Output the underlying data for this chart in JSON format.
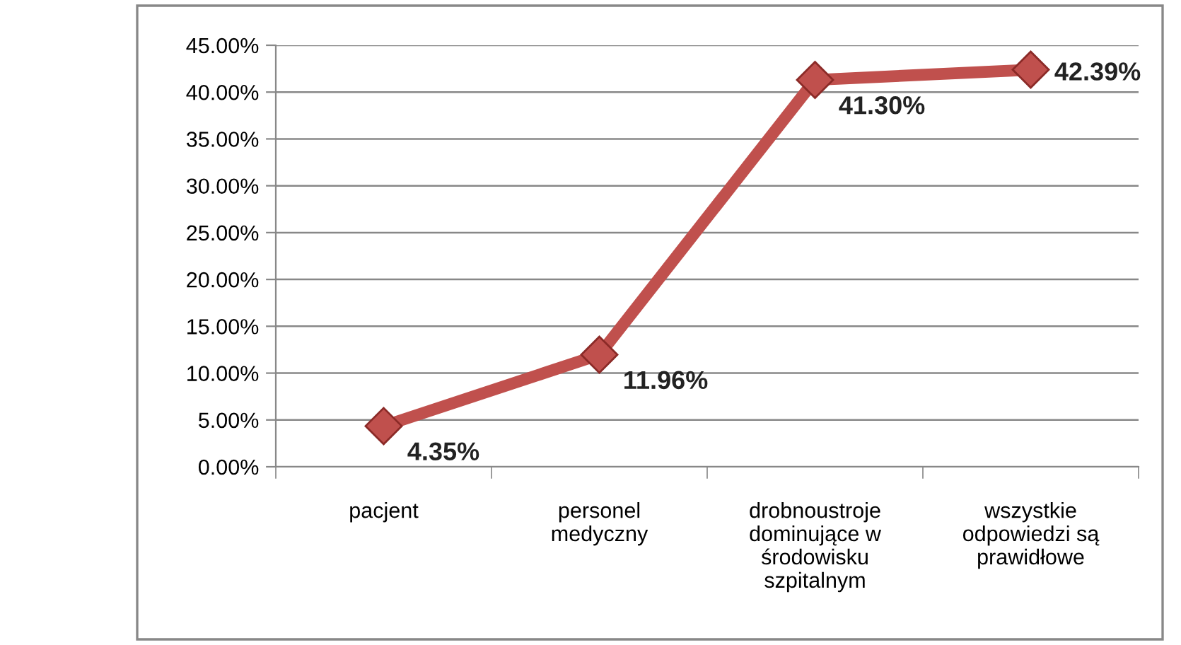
{
  "chart_data": {
    "type": "line",
    "categories": [
      "pacjent",
      "personel\nmedyczny",
      "drobnoustroje\ndominujące w\nśrodowisku\nszpitalnym",
      "wszystkie\nodpowiedzi są\nprawidłowe"
    ],
    "series": [
      {
        "color": "#c0504d",
        "values": [
          4.35,
          11.96,
          41.3,
          42.39
        ],
        "value_labels": [
          "4.35%",
          "11.96%",
          "41.30%",
          "42.39%"
        ]
      }
    ],
    "ylim": [
      0,
      45
    ],
    "yticks": [
      {
        "value": 0,
        "label": "0.00%"
      },
      {
        "value": 5,
        "label": "5.00%"
      },
      {
        "value": 10,
        "label": "10.00%"
      },
      {
        "value": 15,
        "label": "15.00%"
      },
      {
        "value": 20,
        "label": "20.00%"
      },
      {
        "value": 25,
        "label": "25.00%"
      },
      {
        "value": 30,
        "label": "30.00%"
      },
      {
        "value": 35,
        "label": "35.00%"
      },
      {
        "value": 40,
        "label": "40.00%"
      },
      {
        "value": 45,
        "label": "45.00%"
      }
    ],
    "grid": "y",
    "marker": "diamond",
    "line_style": "solid",
    "legend": false
  }
}
